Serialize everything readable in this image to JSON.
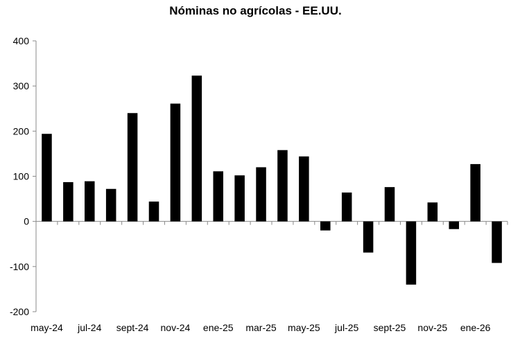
{
  "chart_data": {
    "type": "bar",
    "title": "Nóminas  no agrícolas - EE.UU.",
    "xlabel": "",
    "ylabel": "",
    "ylim": [
      -200,
      400
    ],
    "yticks": [
      400,
      300,
      200,
      100,
      0,
      -100,
      -200
    ],
    "categories": [
      "may-24",
      "jun-24",
      "jul-24",
      "ago-24",
      "sept-24",
      "oct-24",
      "nov-24",
      "dic-24",
      "ene-25",
      "feb-25",
      "mar-25",
      "abr-25",
      "may-25",
      "jun-25",
      "jul-25",
      "ago-25",
      "sept-25",
      "oct-25",
      "nov-25",
      "dic-25",
      "ene-26",
      "feb-26"
    ],
    "tick_labels": [
      "may-24",
      "jul-24",
      "sept-24",
      "nov-24",
      "ene-25",
      "mar-25",
      "may-25",
      "jul-25",
      "sept-25",
      "nov-25",
      "ene-26"
    ],
    "values": [
      194,
      87,
      89,
      72,
      240,
      44,
      261,
      323,
      111,
      102,
      120,
      158,
      144,
      -20,
      64,
      -69,
      76,
      -140,
      42,
      -17,
      127,
      -92
    ],
    "grid": false,
    "legend": "none",
    "bar_color": "#000000"
  }
}
